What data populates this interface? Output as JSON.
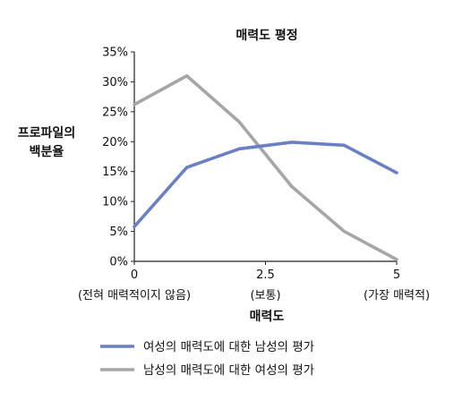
{
  "chart_data": {
    "type": "line",
    "title": "매력도 평정",
    "ylabel": [
      "프로파일의",
      "백분율"
    ],
    "xlabel": "매력도",
    "xlim": [
      0,
      5
    ],
    "ylim": [
      0,
      35
    ],
    "yticks": [
      0,
      5,
      10,
      15,
      20,
      25,
      30,
      35
    ],
    "ytick_labels": [
      "0%",
      "5%",
      "10%",
      "15%",
      "20%",
      "25%",
      "30%",
      "35%"
    ],
    "xticks": [
      {
        "value": 0,
        "label": "0",
        "sublabel": "(전혀 매력적이지 않음)"
      },
      {
        "value": 2.5,
        "label": "2.5",
        "sublabel": "(보통)"
      },
      {
        "value": 5,
        "label": "5",
        "sublabel": "(가장 매력적)"
      }
    ],
    "x": [
      0,
      1,
      2,
      3,
      4,
      5
    ],
    "series": [
      {
        "name": "여성의 매력도에 대한 남성의 평가",
        "color": "#6a80c4",
        "values": [
          5.8,
          15.7,
          18.8,
          19.9,
          19.4,
          14.8
        ]
      },
      {
        "name": "남성의 매력도에 대한 여성의 평가",
        "color": "#a6a6a6",
        "values": [
          26.2,
          31.0,
          23.3,
          12.5,
          5.0,
          0.3
        ]
      }
    ],
    "grid": false,
    "legend_position": "bottom"
  }
}
